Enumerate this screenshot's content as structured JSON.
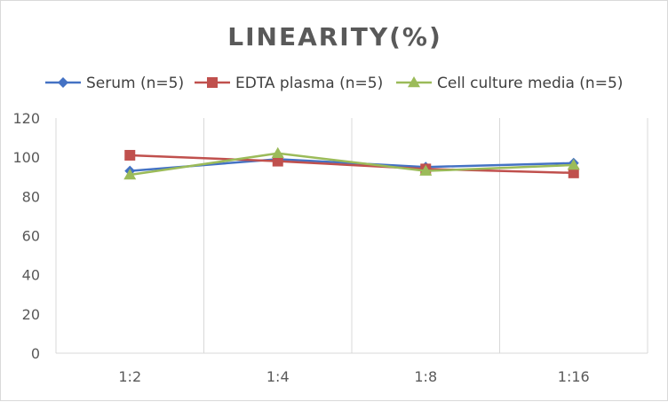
{
  "chart_data": {
    "type": "line",
    "title": "LINEARITY(%)",
    "xlabel": "",
    "ylabel": "",
    "categories": [
      "1:2",
      "1:4",
      "1:8",
      "1:16"
    ],
    "ylim": [
      0,
      120
    ],
    "yticks": [
      0,
      20,
      40,
      60,
      80,
      100,
      120
    ],
    "grid": "vertical",
    "legend_position": "top",
    "series": [
      {
        "name": "Serum (n=5)",
        "color": "#4472c4",
        "marker": "diamond",
        "values": [
          93,
          99,
          95,
          97
        ]
      },
      {
        "name": "EDTA plasma (n=5)",
        "color": "#c0504d",
        "marker": "square",
        "values": [
          101,
          98,
          94,
          92
        ]
      },
      {
        "name": "Cell culture media (n=5)",
        "color": "#9bbb59",
        "marker": "triangle",
        "values": [
          91,
          102,
          93,
          96
        ]
      }
    ]
  }
}
